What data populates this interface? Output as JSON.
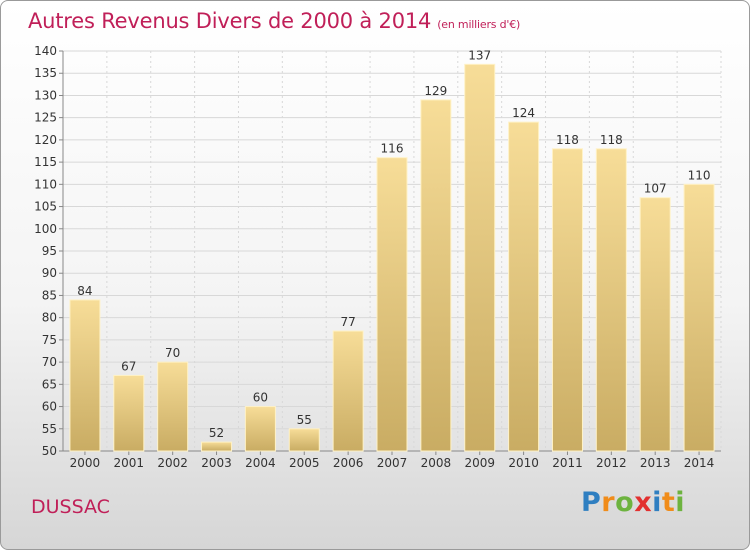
{
  "header": {
    "title": "Autres Revenus Divers de 2000 à 2014",
    "subtitle": "(en milliers d'€)"
  },
  "place_label": "DUSSAC",
  "logo": {
    "text": "Proxiti",
    "letters": [
      {
        "ch": "P",
        "color": "#2f7fc1"
      },
      {
        "ch": "r",
        "color": "#f08c1a"
      },
      {
        "ch": "o",
        "color": "#6db33f"
      },
      {
        "ch": "x",
        "color": "#e2302f"
      },
      {
        "ch": "i",
        "color": "#2f7fc1"
      },
      {
        "ch": "t",
        "color": "#f08c1a"
      },
      {
        "ch": "i",
        "color": "#6db33f"
      }
    ]
  },
  "colors": {
    "title": "#c01f58",
    "bar_top": "#f7dd98",
    "bar_bottom": "#c9ac63",
    "grid": "#d8d8d8",
    "axis": "#888888"
  },
  "chart_data": {
    "type": "bar",
    "categories": [
      "2000",
      "2001",
      "2002",
      "2003",
      "2004",
      "2005",
      "2006",
      "2007",
      "2008",
      "2009",
      "2010",
      "2011",
      "2012",
      "2013",
      "2014"
    ],
    "values": [
      84,
      67,
      70,
      52,
      60,
      55,
      77,
      116,
      129,
      137,
      124,
      118,
      118,
      107,
      110
    ],
    "ylim": [
      50,
      140
    ],
    "ytick_step": 5,
    "grid": true
  }
}
